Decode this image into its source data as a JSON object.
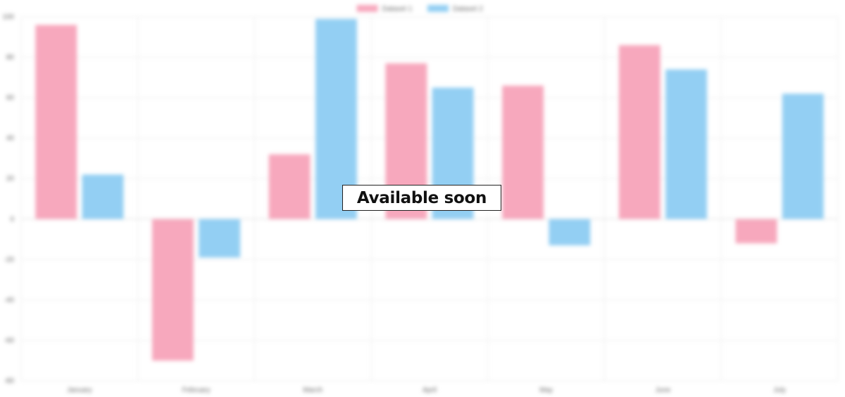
{
  "overlay": {
    "message": "Available soon"
  },
  "colors": {
    "dataset1_fill": "#f7a8bd",
    "dataset2_fill": "#93cff3",
    "grid": "#ebebeb",
    "zero_line": "#d8d8d8",
    "tick_text": "#666666"
  },
  "chart_data": {
    "type": "bar",
    "categories": [
      "January",
      "February",
      "March",
      "April",
      "May",
      "June",
      "July"
    ],
    "series": [
      {
        "name": "Dataset 1",
        "values": [
          96,
          -70,
          32,
          77,
          66,
          86,
          -12
        ]
      },
      {
        "name": "Dataset 2",
        "values": [
          22,
          -19,
          99,
          65,
          -13,
          74,
          62
        ]
      }
    ],
    "ylim": [
      -80,
      100
    ],
    "yticks": [
      100,
      80,
      60,
      40,
      20,
      0,
      -20,
      -40,
      -60,
      -80
    ],
    "grid": true,
    "legend": "top-center",
    "title": "",
    "xlabel": "",
    "ylabel": ""
  }
}
